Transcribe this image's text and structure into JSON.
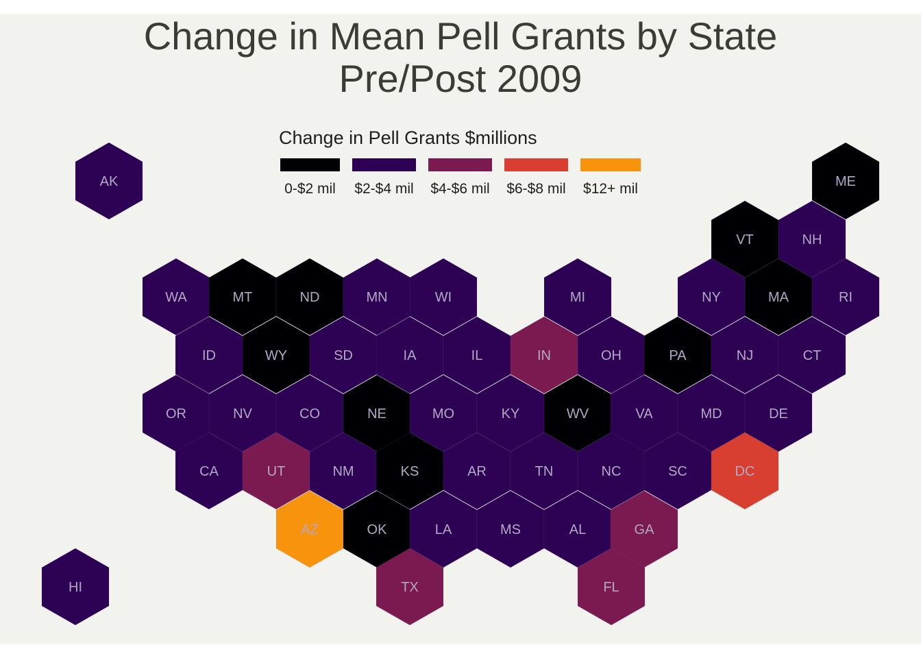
{
  "title": [
    "Change in Mean Pell Grants by State",
    "Pre/Post 2009"
  ],
  "legend": {
    "title": "Change in Pell Grants $millions",
    "items": [
      {
        "label": "0-$2 mil",
        "color": "#000004"
      },
      {
        "label": "$2-$4 mil",
        "color": "#2d0153"
      },
      {
        "label": "$4-$6 mil",
        "color": "#7a1a51"
      },
      {
        "label": "$6-$8 mil",
        "color": "#d83f31"
      },
      {
        "label": "$12+ mil",
        "color": "#f8930e"
      }
    ]
  },
  "states": [
    {
      "abbr": "AK",
      "bin": 1
    },
    {
      "abbr": "ME",
      "bin": 0
    },
    {
      "abbr": "VT",
      "bin": 0
    },
    {
      "abbr": "NH",
      "bin": 1
    },
    {
      "abbr": "WA",
      "bin": 1
    },
    {
      "abbr": "MT",
      "bin": 0
    },
    {
      "abbr": "ND",
      "bin": 0
    },
    {
      "abbr": "MN",
      "bin": 1
    },
    {
      "abbr": "WI",
      "bin": 1
    },
    {
      "abbr": "MI",
      "bin": 1
    },
    {
      "abbr": "NY",
      "bin": 1
    },
    {
      "abbr": "MA",
      "bin": 0
    },
    {
      "abbr": "RI",
      "bin": 1
    },
    {
      "abbr": "ID",
      "bin": 1
    },
    {
      "abbr": "WY",
      "bin": 0
    },
    {
      "abbr": "SD",
      "bin": 1
    },
    {
      "abbr": "IA",
      "bin": 1
    },
    {
      "abbr": "IL",
      "bin": 1
    },
    {
      "abbr": "IN",
      "bin": 2
    },
    {
      "abbr": "OH",
      "bin": 1
    },
    {
      "abbr": "PA",
      "bin": 0
    },
    {
      "abbr": "NJ",
      "bin": 1
    },
    {
      "abbr": "CT",
      "bin": 1
    },
    {
      "abbr": "OR",
      "bin": 1
    },
    {
      "abbr": "NV",
      "bin": 1
    },
    {
      "abbr": "CO",
      "bin": 1
    },
    {
      "abbr": "NE",
      "bin": 0
    },
    {
      "abbr": "MO",
      "bin": 1
    },
    {
      "abbr": "KY",
      "bin": 1
    },
    {
      "abbr": "WV",
      "bin": 0
    },
    {
      "abbr": "VA",
      "bin": 1
    },
    {
      "abbr": "MD",
      "bin": 1
    },
    {
      "abbr": "DE",
      "bin": 1
    },
    {
      "abbr": "CA",
      "bin": 1
    },
    {
      "abbr": "UT",
      "bin": 2
    },
    {
      "abbr": "NM",
      "bin": 1
    },
    {
      "abbr": "KS",
      "bin": 0
    },
    {
      "abbr": "AR",
      "bin": 1
    },
    {
      "abbr": "TN",
      "bin": 1
    },
    {
      "abbr": "NC",
      "bin": 1
    },
    {
      "abbr": "SC",
      "bin": 1
    },
    {
      "abbr": "DC",
      "bin": 3
    },
    {
      "abbr": "AZ",
      "bin": 4
    },
    {
      "abbr": "OK",
      "bin": 0
    },
    {
      "abbr": "LA",
      "bin": 1
    },
    {
      "abbr": "MS",
      "bin": 1
    },
    {
      "abbr": "AL",
      "bin": 1
    },
    {
      "abbr": "GA",
      "bin": 2
    },
    {
      "abbr": "HI",
      "bin": 1
    },
    {
      "abbr": "TX",
      "bin": 2
    },
    {
      "abbr": "FL",
      "bin": 2
    }
  ]
}
